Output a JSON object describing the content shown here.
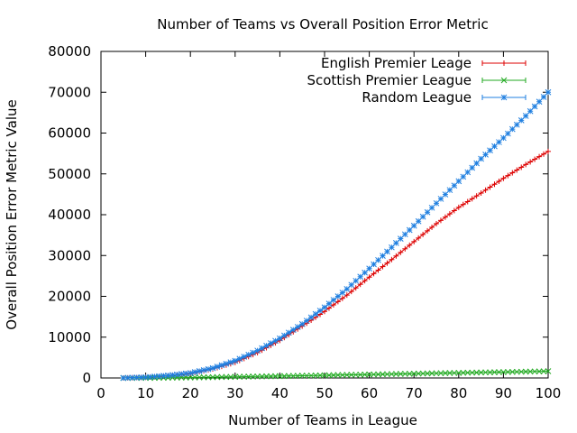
{
  "chart_data": {
    "type": "line",
    "title": "Number of Teams vs Overall Position Error Metric",
    "xlabel": "Number of Teams in League",
    "ylabel": "Overall Position Error Metric Value",
    "xlim": [
      0,
      100
    ],
    "ylim": [
      0,
      80000
    ],
    "xticks": [
      0,
      10,
      20,
      30,
      40,
      50,
      60,
      70,
      80,
      90,
      100
    ],
    "yticks": [
      0,
      10000,
      20000,
      30000,
      40000,
      50000,
      60000,
      70000,
      80000
    ],
    "grid": false,
    "legend_position": "top-right",
    "x": [
      5,
      10,
      15,
      20,
      25,
      30,
      35,
      40,
      45,
      50,
      55,
      60,
      65,
      70,
      75,
      80,
      85,
      90,
      95,
      100
    ],
    "series": [
      {
        "name": "English Premier Leage",
        "color": "#dd0000",
        "marker": "plus",
        "values": [
          0,
          150,
          500,
          1100,
          2200,
          3800,
          6200,
          9200,
          12700,
          16300,
          20300,
          24700,
          29000,
          33400,
          37800,
          41800,
          45300,
          48900,
          52300,
          55500
        ]
      },
      {
        "name": "Scottish Premier League",
        "color": "#22aa22",
        "marker": "x",
        "values": [
          0,
          20,
          60,
          120,
          200,
          280,
          370,
          460,
          550,
          650,
          750,
          850,
          950,
          1050,
          1150,
          1250,
          1350,
          1450,
          1550,
          1650
        ]
      },
      {
        "name": "Random League",
        "color": "#1f7fe0",
        "marker": "star",
        "values": [
          0,
          180,
          600,
          1200,
          2400,
          4200,
          6700,
          9700,
          13200,
          17300,
          21800,
          26800,
          32000,
          37300,
          42800,
          48200,
          53700,
          58800,
          64200,
          70000
        ]
      }
    ]
  }
}
